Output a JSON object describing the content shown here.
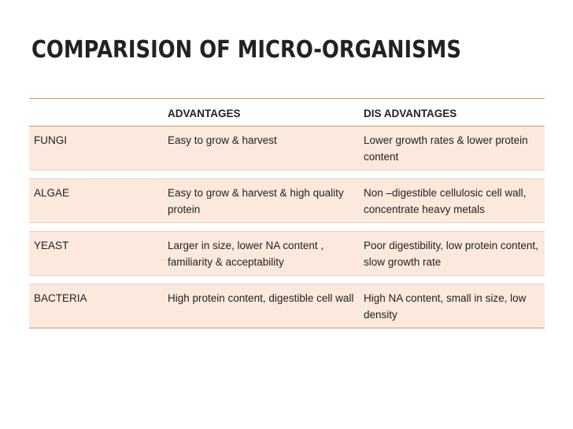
{
  "title": "COMPARISION OF MICRO-ORGANISMS",
  "table": {
    "headers": [
      "",
      "ADVANTAGES",
      "DIS ADVANTAGES"
    ],
    "rows": [
      {
        "organism": "FUNGI",
        "advantages": "Easy to grow & harvest",
        "disadvantages": "Lower growth rates & lower protein content"
      },
      {
        "organism": "ALGAE",
        "advantages": "Easy to grow & harvest & high quality protein",
        "disadvantages": "Non –digestible cellulosic cell wall, concentrate heavy metals"
      },
      {
        "organism": "YEAST",
        "advantages": "Larger in size, lower NA content , familiarity & acceptability",
        "disadvantages": "Poor digestibility, low protein content, slow growth rate"
      },
      {
        "organism": "BACTERIA",
        "advantages": "High protein content, digestible cell wall",
        "disadvantages": "High NA content,  small in size, low density"
      }
    ]
  },
  "colors": {
    "row_fill": "#fbe9dd",
    "rule": "#c89a6a"
  }
}
